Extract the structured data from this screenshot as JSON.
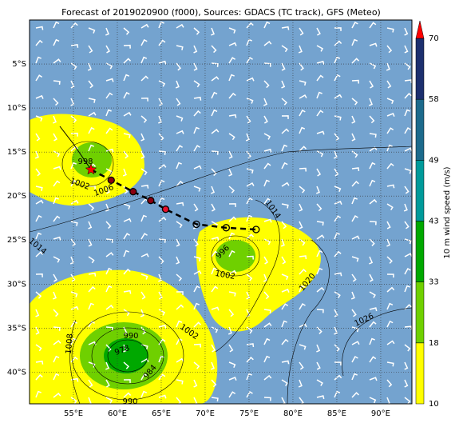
{
  "title": "Forecast of 2019020900 (f000), Sources: GDACS (TC track), GFS (Meteo)",
  "xlim": [
    50,
    93.55
  ],
  "ylim": [
    0,
    -43.6
  ],
  "xticks": [
    {
      "value": 55,
      "label": "55°E"
    },
    {
      "value": 60,
      "label": "60°E"
    },
    {
      "value": 65,
      "label": "65°E"
    },
    {
      "value": 70,
      "label": "70°E"
    },
    {
      "value": 75,
      "label": "75°E"
    },
    {
      "value": 80,
      "label": "80°E"
    },
    {
      "value": 85,
      "label": "85°E"
    },
    {
      "value": 90,
      "label": "90°E"
    }
  ],
  "yticks": [
    {
      "value": -5,
      "label": "5°S"
    },
    {
      "value": -10,
      "label": "10°S"
    },
    {
      "value": -15,
      "label": "15°S"
    },
    {
      "value": -20,
      "label": "20°S"
    },
    {
      "value": -25,
      "label": "25°S"
    },
    {
      "value": -30,
      "label": "30°S"
    },
    {
      "value": -35,
      "label": "35°S"
    },
    {
      "value": -40,
      "label": "40°S"
    }
  ],
  "colorbar": {
    "label": "10 m wind speed (m/s)",
    "levels": [
      10,
      18,
      33,
      43,
      49,
      58,
      70
    ],
    "colors": [
      "#ffff00",
      "#6fd000",
      "#00a800",
      "#009a9a",
      "#1c6a8c",
      "#1c2f6e"
    ]
  },
  "track": {
    "lon": [
      57.0,
      59.3,
      61.8,
      63.8,
      65.5,
      69.0,
      72.4,
      75.8
    ],
    "lat": [
      -17.0,
      -18.2,
      -19.5,
      -20.5,
      -21.5,
      -23.2,
      -23.6,
      -23.8
    ]
  },
  "isobars": [
    "998",
    "1002",
    "1006",
    "1014",
    "996",
    "1002",
    "1020",
    "1026",
    "1014",
    "1008",
    "990",
    "978",
    "984",
    "990",
    "1002"
  ]
}
